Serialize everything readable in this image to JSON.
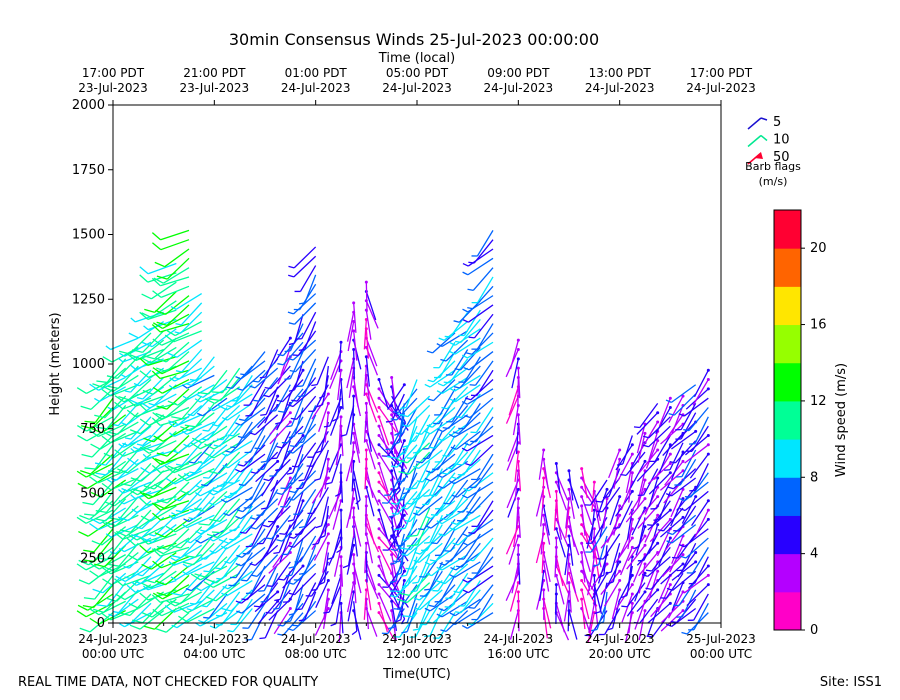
{
  "chart_data": {
    "type": "wind_barb_profile",
    "title": "30min Consensus Winds 25-Jul-2023 00:00:00",
    "top_axis_title": "Time (local)",
    "xlabel": "Time(UTC)",
    "ylabel": "Height (meters)",
    "ylim": [
      0,
      2000
    ],
    "xlim_hours": [
      0,
      24
    ],
    "y_ticks": [
      0,
      250,
      500,
      750,
      1000,
      1250,
      1500,
      1750,
      2000
    ],
    "bottom_ticks": [
      {
        "h": 0,
        "date": "24-Jul-2023",
        "time": "00:00 UTC"
      },
      {
        "h": 4,
        "date": "24-Jul-2023",
        "time": "04:00 UTC"
      },
      {
        "h": 8,
        "date": "24-Jul-2023",
        "time": "08:00 UTC"
      },
      {
        "h": 12,
        "date": "24-Jul-2023",
        "time": "12:00 UTC"
      },
      {
        "h": 16,
        "date": "24-Jul-2023",
        "time": "16:00 UTC"
      },
      {
        "h": 20,
        "date": "24-Jul-2023",
        "time": "20:00 UTC"
      },
      {
        "h": 24,
        "date": "25-Jul-2023",
        "time": "00:00 UTC"
      }
    ],
    "top_ticks": [
      {
        "h": 0,
        "time": "17:00 PDT",
        "date": "23-Jul-2023"
      },
      {
        "h": 4,
        "time": "21:00 PDT",
        "date": "23-Jul-2023"
      },
      {
        "h": 8,
        "time": "01:00 PDT",
        "date": "24-Jul-2023"
      },
      {
        "h": 12,
        "time": "05:00 PDT",
        "date": "24-Jul-2023"
      },
      {
        "h": 16,
        "time": "09:00 PDT",
        "date": "24-Jul-2023"
      },
      {
        "h": 20,
        "time": "13:00 PDT",
        "date": "24-Jul-2023"
      },
      {
        "h": 24,
        "time": "17:00 PDT",
        "date": "24-Jul-2023"
      }
    ],
    "barb_legend": {
      "items": [
        {
          "label": "5",
          "color": "#1a10d0"
        },
        {
          "label": "10",
          "color": "#00e890"
        },
        {
          "label": "50",
          "color": "#ff0030"
        }
      ],
      "title_line1": "Barb flags",
      "title_line2": "(m/s)"
    },
    "colorbar": {
      "label": "Wind speed (m/s)",
      "range": [
        0,
        22
      ],
      "ticks": [
        0,
        4,
        8,
        12,
        16,
        20
      ],
      "colors": [
        "#ff00c8",
        "#b400ff",
        "#2800ff",
        "#0064ff",
        "#00e6ff",
        "#00ff96",
        "#00ff00",
        "#96ff00",
        "#ffe600",
        "#ff6400",
        "#ff0032"
      ]
    },
    "profiles": [
      {
        "h": 0.0,
        "top": 950,
        "speed": 11.5,
        "dir": 230
      },
      {
        "h": 0.5,
        "top": 1030,
        "speed": 11.0,
        "dir": 232
      },
      {
        "h": 1.0,
        "top": 1120,
        "speed": 10.5,
        "dir": 234
      },
      {
        "h": 1.5,
        "top": 1130,
        "speed": 10.0,
        "dir": 236
      },
      {
        "h": 2.0,
        "top": 1200,
        "speed": 10.0,
        "dir": 238
      },
      {
        "h": 2.5,
        "top": 1410,
        "speed": 11.0,
        "dir": 240
      },
      {
        "h": 3.0,
        "top": 1540,
        "speed": 12.5,
        "dir": 240
      },
      {
        "h": 3.5,
        "top": 1280,
        "speed": 9.5,
        "dir": 235
      },
      {
        "h": 4.0,
        "top": 1050,
        "speed": 9.0,
        "dir": 232
      },
      {
        "h": 4.5,
        "top": 1000,
        "speed": 9.0,
        "dir": 230
      },
      {
        "h": 5.0,
        "top": 1010,
        "speed": 9.5,
        "dir": 228
      },
      {
        "h": 5.5,
        "top": 1000,
        "speed": 8.5,
        "dir": 226
      },
      {
        "h": 6.0,
        "top": 1050,
        "speed": 6.5,
        "dir": 220
      },
      {
        "h": 6.5,
        "top": 1060,
        "speed": 5.5,
        "dir": 215
      },
      {
        "h": 7.0,
        "top": 1100,
        "speed": 5.0,
        "dir": 212
      },
      {
        "h": 7.5,
        "top": 1200,
        "speed": 6.0,
        "dir": 210
      },
      {
        "h": 8.0,
        "top": 1460,
        "speed": 6.5,
        "dir": 215
      },
      {
        "h": 8.5,
        "top": 1050,
        "speed": 4.5,
        "dir": 200
      },
      {
        "h": 9.0,
        "top": 1100,
        "speed": 4.0,
        "dir": 190
      },
      {
        "h": 9.5,
        "top": 1250,
        "speed": 3.5,
        "dir": 180
      },
      {
        "h": 10.0,
        "top": 1320,
        "speed": 3.0,
        "dir": 170
      },
      {
        "h": 10.5,
        "top": 950,
        "speed": 3.0,
        "dir": 150
      },
      {
        "h": 11.0,
        "top": 950,
        "speed": 3.5,
        "dir": 160
      },
      {
        "h": 11.5,
        "top": 950,
        "speed": 5.5,
        "dir": 200
      },
      {
        "h": 12.0,
        "top": 970,
        "speed": 8.5,
        "dir": 210
      },
      {
        "h": 12.5,
        "top": 900,
        "speed": 9.5,
        "dir": 215
      },
      {
        "h": 13.0,
        "top": 820,
        "speed": 8.5,
        "dir": 218
      },
      {
        "h": 13.5,
        "top": 1130,
        "speed": 8.0,
        "dir": 222
      },
      {
        "h": 14.0,
        "top": 1200,
        "speed": 8.5,
        "dir": 225
      },
      {
        "h": 14.5,
        "top": 1250,
        "speed": 8.0,
        "dir": 226
      },
      {
        "h": 15.0,
        "top": 1550,
        "speed": 7.0,
        "dir": 225
      },
      {
        "h": 16.0,
        "top": 1100,
        "speed": 3.0,
        "dir": 190
      },
      {
        "h": 17.0,
        "top": 700,
        "speed": 3.0,
        "dir": 180
      },
      {
        "h": 17.5,
        "top": 650,
        "speed": 3.0,
        "dir": 170
      },
      {
        "h": 18.0,
        "top": 620,
        "speed": 3.0,
        "dir": 175
      },
      {
        "h": 18.5,
        "top": 600,
        "speed": 2.5,
        "dir": 160
      },
      {
        "h": 19.0,
        "top": 550,
        "speed": 3.0,
        "dir": 180
      },
      {
        "h": 19.5,
        "top": 580,
        "speed": 5.0,
        "dir": 200
      },
      {
        "h": 20.0,
        "top": 700,
        "speed": 4.5,
        "dir": 205
      },
      {
        "h": 20.5,
        "top": 730,
        "speed": 3.5,
        "dir": 200
      },
      {
        "h": 21.0,
        "top": 800,
        "speed": 3.5,
        "dir": 205
      },
      {
        "h": 21.5,
        "top": 850,
        "speed": 3.5,
        "dir": 210
      },
      {
        "h": 22.0,
        "top": 880,
        "speed": 4.5,
        "dir": 215
      },
      {
        "h": 22.5,
        "top": 900,
        "speed": 3.5,
        "dir": 215
      },
      {
        "h": 23.0,
        "top": 950,
        "speed": 5.5,
        "dir": 220
      },
      {
        "h": 23.5,
        "top": 1000,
        "speed": 5.0,
        "dir": 220
      }
    ]
  },
  "footer": {
    "left": "REAL TIME DATA, NOT CHECKED FOR QUALITY",
    "right": "Site: ISS1"
  }
}
